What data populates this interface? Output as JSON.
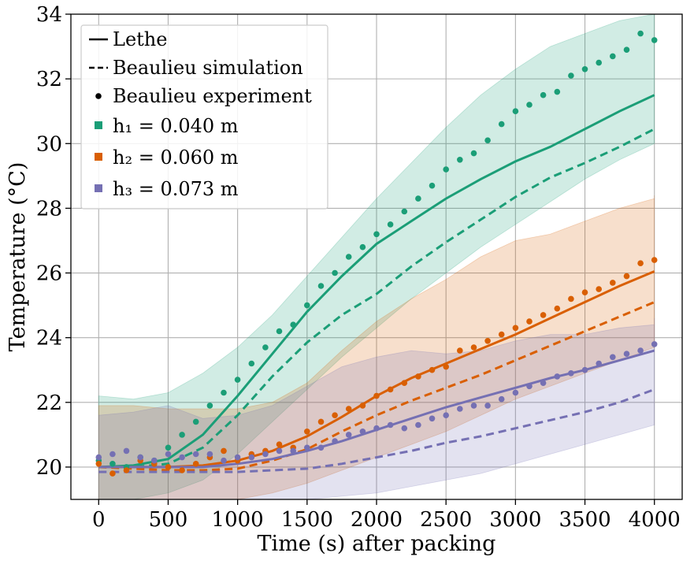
{
  "chart_data": {
    "type": "line",
    "xlabel": "Time (s) after packing",
    "ylabel": "Temperature (°C)",
    "xlim": [
      -200,
      4200
    ],
    "ylim": [
      19,
      34
    ],
    "x_ticks": [
      0,
      500,
      1000,
      1500,
      2000,
      2500,
      3000,
      3500,
      4000
    ],
    "y_ticks": [
      20,
      22,
      24,
      26,
      28,
      30,
      32,
      34
    ],
    "grid": true,
    "legend_position": "top-left",
    "legend": [
      {
        "label": "Lethe",
        "marker": "solid-line"
      },
      {
        "label": "Beaulieu simulation",
        "marker": "dashed-line"
      },
      {
        "label": "Beaulieu experiment",
        "marker": "dot"
      },
      {
        "label": "h₁ = 0.040 m",
        "marker": "square",
        "color": "#1b9e77"
      },
      {
        "label": "h₂ = 0.060 m",
        "marker": "square",
        "color": "#d95f02"
      },
      {
        "label": "h₃ = 0.073 m",
        "marker": "square",
        "color": "#7570b3"
      }
    ],
    "series": [
      {
        "name": "h₁ = 0.040 m",
        "color": "#1b9e77",
        "lethe": {
          "x": [
            0,
            250,
            500,
            750,
            1000,
            1250,
            1500,
            1750,
            2000,
            2250,
            2500,
            2750,
            3000,
            3250,
            3500,
            3750,
            4000
          ],
          "y": [
            20.0,
            20.05,
            20.25,
            21.0,
            22.2,
            23.5,
            24.8,
            25.9,
            26.9,
            27.6,
            28.3,
            28.9,
            29.45,
            29.9,
            30.45,
            31.0,
            31.5
          ]
        },
        "beaulieu_simulation": {
          "x": [
            0,
            250,
            500,
            750,
            1000,
            1250,
            1500,
            1750,
            2000,
            2250,
            2500,
            2750,
            3000,
            3250,
            3500,
            3750,
            4000
          ],
          "y": [
            20.0,
            20.0,
            20.1,
            20.6,
            21.6,
            22.8,
            23.85,
            24.7,
            25.35,
            26.2,
            26.95,
            27.65,
            28.35,
            28.95,
            29.4,
            29.9,
            30.45
          ]
        },
        "experiment": {
          "x": [
            0,
            100,
            200,
            300,
            400,
            500,
            600,
            700,
            800,
            900,
            1000,
            1100,
            1200,
            1300,
            1400,
            1500,
            1600,
            1700,
            1800,
            1900,
            2000,
            2100,
            2200,
            2300,
            2400,
            2500,
            2600,
            2700,
            2800,
            2900,
            3000,
            3100,
            3200,
            3300,
            3400,
            3500,
            3600,
            3700,
            3800,
            3900,
            4000
          ],
          "y": [
            20.2,
            20.1,
            20.0,
            20.3,
            20.2,
            20.6,
            21.0,
            21.4,
            21.9,
            22.3,
            22.7,
            23.2,
            23.7,
            24.2,
            24.4,
            25.0,
            25.6,
            26.0,
            26.5,
            26.8,
            27.2,
            27.5,
            27.9,
            28.3,
            28.7,
            29.2,
            29.5,
            29.7,
            30.1,
            30.6,
            31.0,
            31.2,
            31.5,
            31.6,
            32.1,
            32.3,
            32.5,
            32.7,
            32.9,
            33.4,
            33.2
          ]
        },
        "band_lower": [
          18.9,
          19.0,
          19.2,
          19.6,
          20.4,
          21.4,
          22.4,
          23.4,
          24.3,
          25.2,
          26.0,
          26.8,
          27.5,
          28.2,
          28.9,
          29.5,
          30.0,
          30.6
        ],
        "band_upper": [
          22.2,
          22.1,
          22.3,
          22.9,
          23.7,
          24.7,
          25.9,
          27.1,
          28.3,
          29.4,
          30.5,
          31.5,
          32.3,
          33.0,
          33.4,
          33.8,
          34.0,
          34.0
        ]
      },
      {
        "name": "h₂ = 0.060 m",
        "color": "#d95f02",
        "lethe": {
          "x": [
            0,
            250,
            500,
            750,
            1000,
            1250,
            1500,
            1750,
            2000,
            2250,
            2500,
            2750,
            3000,
            3250,
            3500,
            3750,
            4000
          ],
          "y": [
            20.0,
            20.0,
            20.0,
            20.05,
            20.2,
            20.5,
            20.95,
            21.55,
            22.2,
            22.75,
            23.2,
            23.65,
            24.1,
            24.6,
            25.1,
            25.6,
            26.05
          ]
        },
        "beaulieu_simulation": {
          "x": [
            0,
            250,
            500,
            750,
            1000,
            1250,
            1500,
            1750,
            2000,
            2250,
            2500,
            2750,
            3000,
            3250,
            3500,
            3750,
            4000
          ],
          "y": [
            20.0,
            19.95,
            19.9,
            19.9,
            19.95,
            20.2,
            20.55,
            21.1,
            21.6,
            22.05,
            22.45,
            22.85,
            23.3,
            23.75,
            24.2,
            24.65,
            25.1
          ]
        },
        "experiment": {
          "x": [
            0,
            100,
            200,
            300,
            400,
            500,
            600,
            700,
            800,
            900,
            1000,
            1100,
            1200,
            1300,
            1400,
            1500,
            1600,
            1700,
            1800,
            1900,
            2000,
            2100,
            2200,
            2300,
            2400,
            2500,
            2600,
            2700,
            2800,
            2900,
            3000,
            3100,
            3200,
            3300,
            3400,
            3500,
            3600,
            3700,
            3800,
            3900,
            4000
          ],
          "y": [
            20.1,
            19.8,
            19.9,
            20.2,
            20.1,
            20.0,
            19.9,
            20.1,
            20.3,
            20.5,
            20.2,
            20.4,
            20.5,
            20.7,
            20.6,
            21.1,
            21.4,
            21.6,
            21.8,
            21.9,
            22.2,
            22.4,
            22.6,
            22.8,
            23.0,
            23.1,
            23.6,
            23.7,
            23.9,
            24.1,
            24.3,
            24.5,
            24.7,
            24.9,
            25.2,
            25.4,
            25.5,
            25.7,
            25.9,
            26.3,
            26.4
          ]
        },
        "band_lower": [
          18.9,
          19.0,
          19.0,
          19.0,
          19.0,
          19.2,
          19.5,
          19.9,
          20.3,
          20.7,
          21.1,
          21.6,
          22.1,
          22.5,
          22.9,
          23.3,
          23.7,
          24.1
        ],
        "band_upper": [
          21.9,
          21.9,
          21.8,
          21.8,
          21.8,
          22.0,
          22.6,
          23.6,
          24.5,
          25.2,
          25.8,
          26.5,
          27.0,
          27.2,
          27.6,
          28.0,
          28.3,
          28.4
        ]
      },
      {
        "name": "h₃ = 0.073 m",
        "color": "#7570b3",
        "lethe": {
          "x": [
            0,
            250,
            500,
            750,
            1000,
            1250,
            1500,
            1750,
            2000,
            2250,
            2500,
            2750,
            3000,
            3250,
            3500,
            3750,
            4000
          ],
          "y": [
            20.0,
            20.0,
            20.0,
            20.0,
            20.1,
            20.25,
            20.5,
            20.8,
            21.15,
            21.5,
            21.85,
            22.15,
            22.45,
            22.75,
            23.0,
            23.3,
            23.6
          ]
        },
        "beaulieu_simulation": {
          "x": [
            0,
            250,
            500,
            750,
            1000,
            1250,
            1500,
            1750,
            2000,
            2250,
            2500,
            2750,
            3000,
            3250,
            3500,
            3750,
            4000
          ],
          "y": [
            19.85,
            19.85,
            19.85,
            19.85,
            19.85,
            19.9,
            19.95,
            20.1,
            20.3,
            20.5,
            20.75,
            20.95,
            21.2,
            21.45,
            21.7,
            22.0,
            22.4
          ]
        },
        "experiment": {
          "x": [
            0,
            100,
            200,
            300,
            400,
            500,
            600,
            700,
            800,
            900,
            1000,
            1100,
            1200,
            1300,
            1400,
            1500,
            1600,
            1700,
            1800,
            1900,
            2000,
            2100,
            2200,
            2300,
            2400,
            2500,
            2600,
            2700,
            2800,
            2900,
            3000,
            3100,
            3200,
            3300,
            3400,
            3500,
            3600,
            3700,
            3800,
            3900,
            4000
          ],
          "y": [
            20.3,
            20.4,
            20.5,
            20.3,
            20.2,
            20.4,
            20.3,
            20.4,
            20.4,
            20.2,
            20.3,
            20.3,
            20.4,
            20.5,
            20.5,
            20.6,
            20.6,
            20.8,
            21.0,
            21.1,
            21.2,
            21.3,
            21.2,
            21.3,
            21.5,
            21.6,
            21.8,
            21.9,
            21.9,
            22.1,
            22.3,
            22.5,
            22.6,
            22.8,
            22.9,
            23.0,
            23.2,
            23.4,
            23.5,
            23.6,
            23.8
          ]
        },
        "band_lower": [
          18.9,
          18.9,
          18.9,
          18.9,
          18.9,
          18.9,
          19.0,
          19.1,
          19.2,
          19.4,
          19.6,
          19.8,
          20.1,
          20.4,
          20.7,
          21.0,
          21.3,
          21.5
        ],
        "band_upper": [
          21.6,
          21.7,
          21.9,
          21.5,
          21.6,
          21.9,
          22.5,
          23.1,
          23.4,
          23.6,
          23.5,
          23.6,
          23.9,
          24.1,
          24.1,
          24.3,
          24.4,
          24.6
        ]
      }
    ],
    "band_x": [
      0,
      250,
      500,
      750,
      1000,
      1250,
      1500,
      1750,
      2000,
      2250,
      2500,
      2750,
      3000,
      3250,
      3500,
      3750,
      4000,
      4000
    ]
  }
}
